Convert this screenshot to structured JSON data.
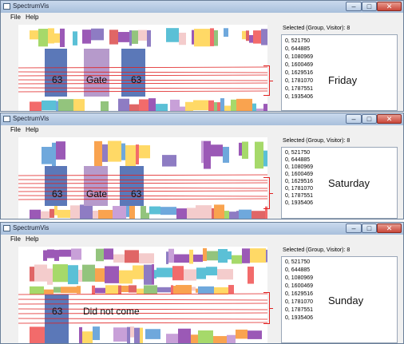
{
  "app_title": "SpectrumVis",
  "window_buttons": {
    "minimize": "–",
    "maximize": "□",
    "close": "✕"
  },
  "menu": {
    "file": "File",
    "help": "Help"
  },
  "selected_label": "Selected (Group, Visitor):",
  "selected_count": "8",
  "visitors": [
    "0, 521750",
    "0, 644885",
    "0, 1080969",
    "0, 1600469",
    "0, 1629516",
    "0, 1781070",
    "0, 1787551",
    "0, 1935406"
  ],
  "panels": [
    {
      "day": "Friday",
      "group_left": "63",
      "middle": "Gate",
      "group_right": "63"
    },
    {
      "day": "Saturday",
      "group_left": "63",
      "middle": "Gate",
      "group_right": "63"
    },
    {
      "day": "Sunday",
      "group_left": "63",
      "middle": "Did not come",
      "group_right": ""
    }
  ],
  "colors": {
    "highlight_blue": "#5b78b8",
    "highlight_purple": "#b69acb",
    "selection_line": "#e02020",
    "palette": [
      "#f26b6b",
      "#9b59b6",
      "#f9a34f",
      "#5bc0d6",
      "#a6d96a",
      "#ffd966",
      "#6fa8dc",
      "#c8a0d8",
      "#f4cccc",
      "#e06666",
      "#93c47d",
      "#8e7cc3"
    ]
  }
}
